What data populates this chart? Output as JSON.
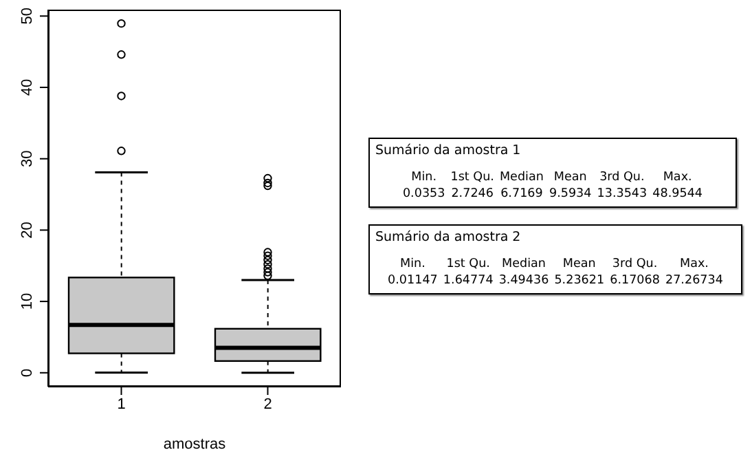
{
  "chart_data": [
    {
      "type": "box",
      "categories": [
        "1",
        "2"
      ],
      "xlabel": "amostras",
      "ylim": [
        -1.95,
        50.9
      ],
      "yticks": [
        0,
        10,
        20,
        30,
        40,
        50
      ],
      "color": "#c8c8c8",
      "boxes": [
        {
          "low": 0.0353,
          "q1": 2.7246,
          "median": 6.7169,
          "q3": 13.3543,
          "high": 28.1,
          "outliers": [
            31.1,
            38.8,
            44.6,
            48.9544
          ]
        },
        {
          "low": 0.01147,
          "q1": 1.64774,
          "median": 3.49436,
          "q3": 6.17068,
          "high": 13.0,
          "outliers": [
            13.6,
            14.1,
            14.6,
            15.2,
            15.8,
            16.4,
            16.9,
            26.2,
            26.6,
            27.26734
          ]
        }
      ]
    },
    {
      "type": "other",
      "title": "Sumário da amostra 1",
      "annotations": [
        "Min.",
        "1st Qu.",
        "Median",
        "Mean",
        "3rd Qu.",
        "Max.",
        "0.0353",
        "2.7246",
        "6.7169",
        "9.5934",
        "13.3543",
        "48.9544"
      ]
    },
    {
      "type": "other",
      "title": "Sumário da amostra 2",
      "annotations": [
        "Min.",
        "1st Qu.",
        "Median",
        "Mean",
        "3rd Qu.",
        "Max.",
        "0.01147",
        "1.64774",
        "3.49436",
        "5.23621",
        "6.17068",
        "27.26734"
      ]
    }
  ]
}
